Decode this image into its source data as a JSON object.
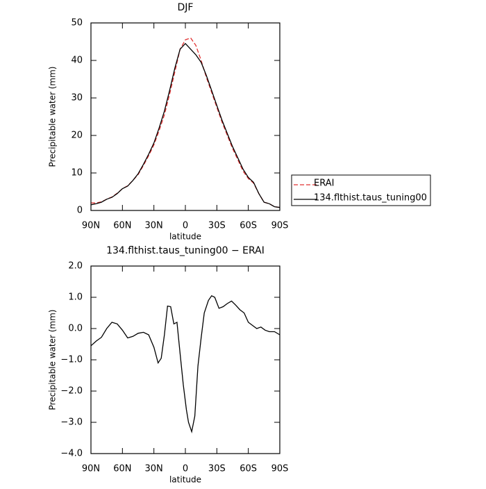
{
  "chart_data": [
    {
      "type": "line",
      "title": "DJF",
      "xlabel": "latitude",
      "ylabel": "Precipitable water (mm)",
      "x": [
        90,
        85,
        80,
        75,
        70,
        65,
        60,
        55,
        50,
        45,
        40,
        35,
        30,
        25,
        20,
        15,
        10,
        5,
        0,
        -5,
        -10,
        -15,
        -20,
        -25,
        -30,
        -35,
        -40,
        -45,
        -50,
        -55,
        -60,
        -65,
        -70,
        -75,
        -80,
        -85,
        -90
      ],
      "xlim": [
        90,
        -90
      ],
      "xticks": [
        {
          "value": 90,
          "label": "90N"
        },
        {
          "value": 60,
          "label": "60N"
        },
        {
          "value": 30,
          "label": "30N"
        },
        0,
        {
          "value": -30,
          "label": "30S"
        },
        {
          "value": -60,
          "label": "60S"
        },
        {
          "value": -90,
          "label": "90S"
        }
      ],
      "ylim": [
        0,
        50
      ],
      "yticks": [
        0,
        10,
        20,
        30,
        40,
        50
      ],
      "legend": "right",
      "series": [
        {
          "name": "ERAI",
          "color": "#e03030",
          "linestyle": "dashed",
          "values": [
            2,
            2,
            2.3,
            3,
            3.6,
            4.6,
            5.8,
            6.6,
            8,
            9.6,
            12,
            14.6,
            17.5,
            21.3,
            25.5,
            31,
            37,
            43,
            45.5,
            46,
            44,
            40,
            35.5,
            31.5,
            27.5,
            23.5,
            20,
            16.5,
            13.5,
            10.5,
            8.5,
            7.3,
            4.5,
            2.2,
            1.8,
            1.0,
            0.8
          ]
        },
        {
          "name": "134.flthist.taus_tuning00",
          "color": "#000000",
          "linestyle": "solid",
          "values": [
            1.5,
            1.8,
            2.2,
            3,
            3.5,
            4.5,
            5.8,
            6.5,
            8,
            9.8,
            12.3,
            15,
            18,
            22,
            26.5,
            32,
            38,
            43,
            44.5,
            43,
            41.5,
            39.5,
            36,
            32,
            28,
            24,
            20.5,
            17,
            14,
            11,
            8.8,
            7.5,
            4.5,
            2.2,
            1.8,
            1.0,
            0.8
          ]
        }
      ]
    },
    {
      "type": "line",
      "title": "134.flthist.taus_tuning00 − ERAI",
      "xlabel": "latitude",
      "ylabel": "Precipitable water (mm)",
      "x": [
        90,
        85,
        80,
        75,
        70,
        65,
        60,
        55,
        50,
        45,
        40,
        35,
        30,
        26,
        23,
        20,
        17,
        14,
        11,
        8,
        5,
        2,
        -1,
        -3,
        -6,
        -9,
        -12,
        -15,
        -18,
        -22,
        -25,
        -28,
        -32,
        -36,
        -40,
        -44,
        -48,
        -52,
        -56,
        -60,
        -64,
        -68,
        -72,
        -76,
        -80,
        -85,
        -90
      ],
      "xlim": [
        90,
        -90
      ],
      "xticks": [
        {
          "value": 90,
          "label": "90N"
        },
        {
          "value": 60,
          "label": "60N"
        },
        {
          "value": 30,
          "label": "30N"
        },
        0,
        {
          "value": -30,
          "label": "30S"
        },
        {
          "value": -60,
          "label": "60S"
        },
        {
          "value": -90,
          "label": "90S"
        }
      ],
      "ylim": [
        -4,
        2
      ],
      "yticks": [
        {
          "value": -4,
          "label": "−4.0"
        },
        {
          "value": -3,
          "label": "−3.0"
        },
        {
          "value": -2,
          "label": "−2.0"
        },
        {
          "value": -1,
          "label": "−1.0"
        },
        {
          "value": 0,
          "label": "0.0"
        },
        {
          "value": 1,
          "label": "1.0"
        },
        {
          "value": 2,
          "label": "2.0"
        }
      ],
      "series": [
        {
          "color": "#000000",
          "linestyle": "solid",
          "values": [
            -0.55,
            -0.4,
            -0.28,
            0.0,
            0.2,
            0.15,
            -0.05,
            -0.3,
            -0.25,
            -0.15,
            -0.12,
            -0.2,
            -0.6,
            -1.1,
            -0.95,
            -0.2,
            0.72,
            0.7,
            0.15,
            0.2,
            -0.8,
            -1.8,
            -2.6,
            -3.0,
            -3.3,
            -2.8,
            -1.2,
            -0.3,
            0.5,
            0.9,
            1.05,
            1.0,
            0.65,
            0.7,
            0.8,
            0.88,
            0.75,
            0.6,
            0.5,
            0.2,
            0.1,
            0.0,
            0.05,
            -0.05,
            -0.1,
            -0.1,
            -0.2
          ]
        }
      ]
    }
  ]
}
